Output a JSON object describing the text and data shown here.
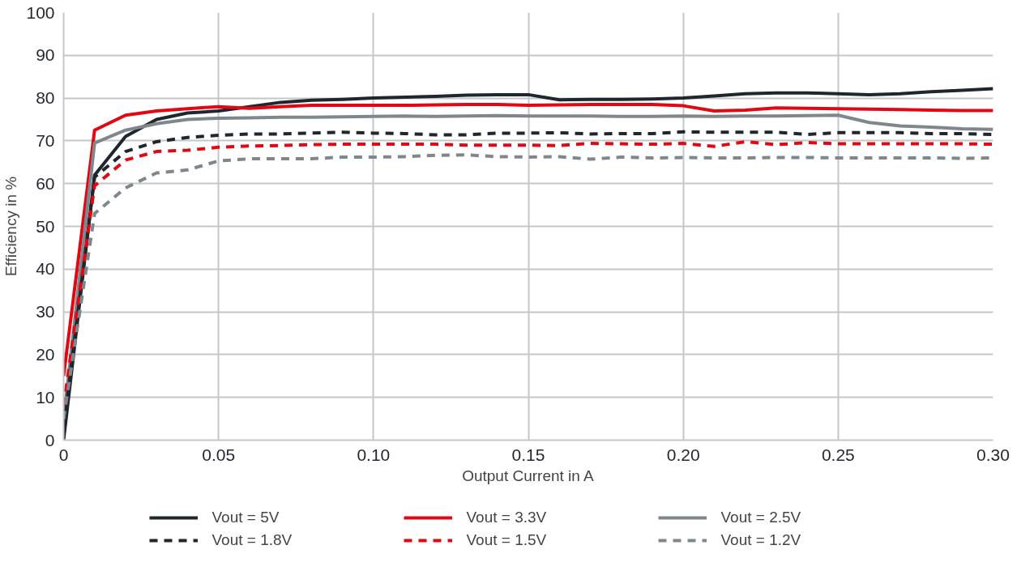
{
  "chart_data": {
    "type": "line",
    "xlabel": "Output Current in A",
    "ylabel": "Efficiency in %",
    "x": [
      0,
      0.01,
      0.02,
      0.03,
      0.04,
      0.05,
      0.06,
      0.07,
      0.08,
      0.09,
      0.1,
      0.11,
      0.12,
      0.13,
      0.14,
      0.15,
      0.16,
      0.17,
      0.18,
      0.19,
      0.2,
      0.21,
      0.22,
      0.23,
      0.24,
      0.25,
      0.26,
      0.27,
      0.28,
      0.29,
      0.3
    ],
    "series": [
      {
        "name": "Vout = 5V",
        "color": "#1f262d",
        "line_style": "solid",
        "values": [
          0,
          62,
          71,
          75,
          76.5,
          77,
          78,
          79,
          79.5,
          79.7,
          80,
          80.2,
          80.4,
          80.7,
          80.8,
          80.8,
          79.6,
          79.7,
          79.7,
          79.8,
          80,
          80.5,
          81,
          81.2,
          81.2,
          81,
          80.8,
          81,
          81.5,
          81.8,
          82.2
        ]
      },
      {
        "name": "Vout = 3.3V",
        "color": "#e30613",
        "line_style": "solid",
        "values": [
          15,
          72.5,
          76,
          77,
          77.5,
          78,
          77.6,
          78,
          78.3,
          78.3,
          78.3,
          78.3,
          78.4,
          78.5,
          78.5,
          78.3,
          78.4,
          78.5,
          78.5,
          78.5,
          78.2,
          77,
          77.2,
          77.7,
          77.6,
          77.5,
          77.4,
          77.3,
          77.2,
          77.1,
          77.1
        ]
      },
      {
        "name": "Vout = 2.5V",
        "color": "#7f878d",
        "line_style": "solid",
        "values": [
          5,
          69.5,
          72.5,
          74,
          75,
          75.3,
          75.4,
          75.5,
          75.5,
          75.6,
          75.7,
          75.8,
          75.7,
          75.8,
          75.9,
          75.8,
          75.8,
          75.8,
          75.7,
          75.7,
          75.8,
          75.7,
          75.8,
          75.8,
          75.9,
          76,
          74.3,
          73.5,
          73.2,
          72.8,
          72.7
        ]
      },
      {
        "name": "Vout = 1.8V",
        "color": "#1f262d",
        "line_style": "dashed",
        "values": [
          3,
          61.5,
          67.5,
          69.8,
          70.8,
          71.3,
          71.6,
          71.6,
          71.8,
          72,
          71.8,
          71.7,
          71.4,
          71.4,
          71.8,
          71.8,
          71.9,
          71.6,
          71.7,
          71.7,
          72.1,
          72,
          72,
          72,
          71.5,
          71.9,
          71.9,
          71.9,
          71.7,
          71.7,
          71.5
        ]
      },
      {
        "name": "Vout = 1.5V",
        "color": "#e30613",
        "line_style": "dashed",
        "values": [
          8,
          59.5,
          65.5,
          67.5,
          67.8,
          68.5,
          68.8,
          68.9,
          69.1,
          69.2,
          69.2,
          69.2,
          69.2,
          69,
          69,
          69,
          68.9,
          69.4,
          69.3,
          69.2,
          69.4,
          68.7,
          69.8,
          69.1,
          69.6,
          69.3,
          69.3,
          69.3,
          69.3,
          69.3,
          69.2
        ]
      },
      {
        "name": "Vout = 1.2V",
        "color": "#7f878d",
        "line_style": "dashed",
        "values": [
          5,
          53,
          59,
          62.5,
          63.2,
          65.3,
          65.8,
          65.8,
          65.8,
          66.2,
          66.2,
          66.3,
          66.6,
          66.7,
          66.3,
          66.2,
          66.3,
          65.7,
          66.2,
          66,
          66.1,
          66,
          66,
          66.1,
          66.1,
          66,
          66,
          66,
          66,
          65.9,
          66
        ]
      }
    ],
    "xlim": [
      0,
      0.3
    ],
    "ylim": [
      0,
      100
    ],
    "xticks": [
      0,
      0.05,
      {
        "value": 0.1,
        "label": "0.10"
      },
      0.15,
      {
        "value": 0.2,
        "label": "0.20"
      },
      0.25,
      {
        "value": 0.3,
        "label": "0.30"
      }
    ],
    "yticks": [
      0,
      10,
      20,
      30,
      40,
      50,
      60,
      70,
      80,
      90,
      100
    ],
    "grid": true,
    "legend": "bottom",
    "marker": "none"
  }
}
